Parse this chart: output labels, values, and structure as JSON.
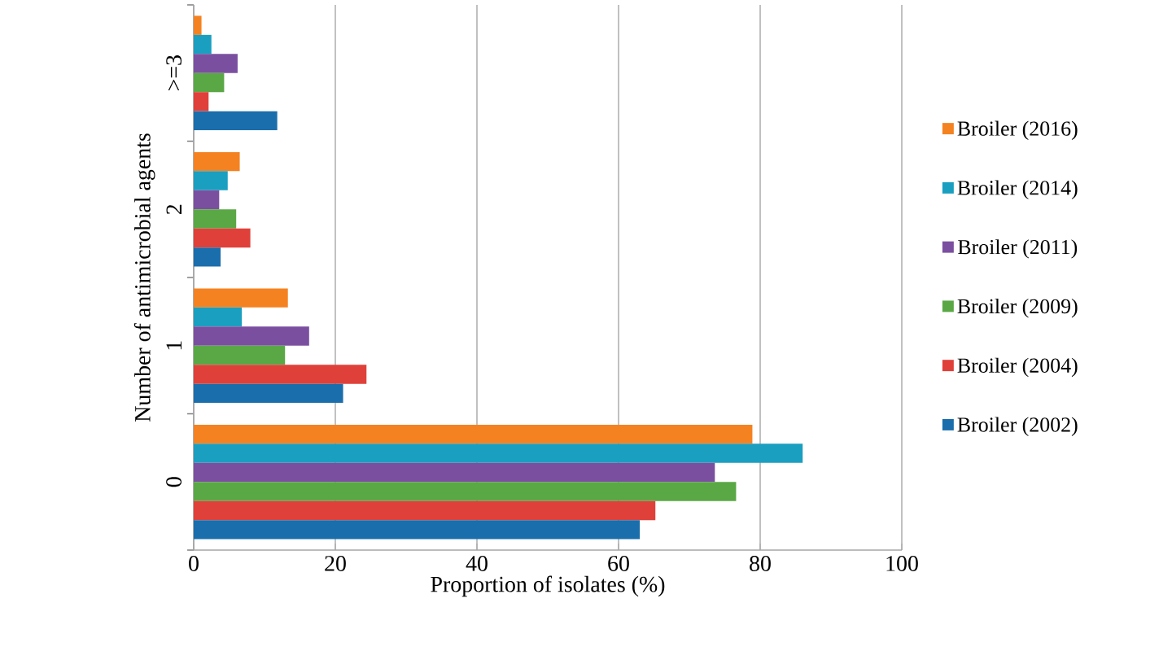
{
  "chart_data": {
    "type": "bar",
    "orientation": "horizontal",
    "xlabel": "Proportion of isolates (%)",
    "ylabel": "Number of antimicrobial agents",
    "categories": [
      ">=3",
      "2",
      "1",
      "0"
    ],
    "series": [
      {
        "name": "Broiler (2016)",
        "color": "#f58220",
        "values": [
          1.1,
          6.5,
          13.3,
          78.9
        ]
      },
      {
        "name": "Broiler (2014)",
        "color": "#1a9fc0",
        "values": [
          2.5,
          4.8,
          6.8,
          86.0
        ]
      },
      {
        "name": "Broiler (2011)",
        "color": "#7b4fa0",
        "values": [
          6.2,
          3.6,
          16.3,
          73.6
        ]
      },
      {
        "name": "Broiler (2009)",
        "color": "#5aa845",
        "values": [
          4.3,
          6.0,
          12.9,
          76.6
        ]
      },
      {
        "name": "Broiler (2004)",
        "color": "#e0403a",
        "values": [
          2.1,
          8.0,
          24.4,
          65.2
        ]
      },
      {
        "name": "Broiler (2002)",
        "color": "#1a6eab",
        "values": [
          11.8,
          3.8,
          21.1,
          63.0
        ]
      }
    ],
    "xlim": [
      0,
      100
    ],
    "xticks": [
      0,
      20,
      40,
      60,
      80,
      100
    ],
    "grid": "x",
    "legend": "right"
  }
}
